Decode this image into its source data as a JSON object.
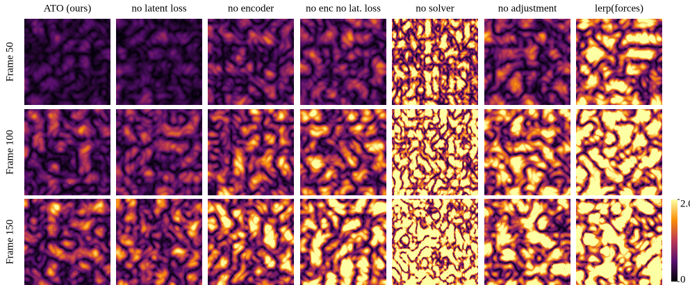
{
  "columns": [
    "ATO (ours)",
    "no latent loss",
    "no encoder",
    "no enc no lat. loss",
    "no solver",
    "no adjustment",
    "lerp(forces)"
  ],
  "rows": [
    "Frame 50",
    "Frame 100",
    "Frame 150"
  ],
  "colorbar": {
    "lim": [
      0,
      2
    ],
    "ticks": [
      {
        "value": 0,
        "label": "0"
      },
      {
        "value": 2,
        "label": "2.0"
      }
    ]
  }
}
